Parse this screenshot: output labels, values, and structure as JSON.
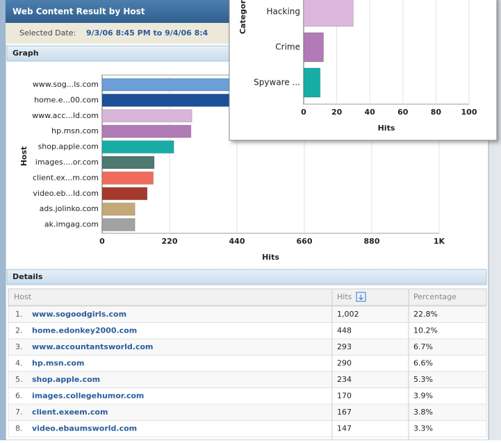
{
  "window": {
    "title": "Web Content Result by Host",
    "selected_date_label": "Selected Date:",
    "selected_date": "9/3/06 8:45 PM to 9/4/06 8:4"
  },
  "graph": {
    "title": "Graph",
    "chart": {
      "type": "bar",
      "orientation": "horizontal",
      "categories": [
        "www.sog...ls.com",
        "home.e...00.com",
        "www.acc...ld.com",
        "hp.msn.com",
        "shop.apple.com",
        "images....or.com",
        "client.ex...m.com",
        "video.eb...ld.com",
        "ads.jolinko.com",
        "ak.imgag.com"
      ],
      "values": [
        1002,
        448,
        293,
        290,
        234,
        170,
        167,
        147,
        107,
        107
      ],
      "colors": [
        "#6b9fd9",
        "#1d4f98",
        "#d9b5da",
        "#b07bb6",
        "#17ada6",
        "#4e7870",
        "#ef6b5c",
        "#a53a2c",
        "#c4a878",
        "#a2a2a2"
      ],
      "xlim": [
        0,
        1100
      ],
      "xticks": [
        0,
        220,
        440,
        660,
        880,
        {
          "value": 1100,
          "label": "1K"
        }
      ],
      "x_label": "Hits",
      "y_label": "Host",
      "grid": true
    }
  },
  "details": {
    "title": "Details",
    "columns": [
      "Host",
      "Hits",
      "Percentage"
    ],
    "rows": [
      [
        "1.",
        "www.sogoodgirls.com",
        "1,002",
        "22.8%"
      ],
      [
        "2.",
        "home.edonkey2000.com",
        "448",
        "10.2%"
      ],
      [
        "3.",
        "www.accountantsworld.com",
        "293",
        "6.7%"
      ],
      [
        "4.",
        "hp.msn.com",
        "290",
        "6.6%"
      ],
      [
        "5.",
        "shop.apple.com",
        "234",
        "5.3%"
      ],
      [
        "6.",
        "images.collegehumor.com",
        "170",
        "3.9%"
      ],
      [
        "7.",
        "client.exeem.com",
        "167",
        "3.8%"
      ],
      [
        "8.",
        "video.ebaumsworld.com",
        "147",
        "3.3%"
      ]
    ]
  },
  "popup": {
    "chart": {
      "type": "bar",
      "orientation": "horizontal",
      "categories": [
        "Hacking",
        "Crime",
        "Spyware ..."
      ],
      "values": [
        30,
        12,
        10
      ],
      "colors": [
        "#dcb6dc",
        "#b07bb6",
        "#17ada6"
      ],
      "xlim": [
        0,
        100
      ],
      "xticks": [
        0,
        20,
        40,
        60,
        80,
        100
      ],
      "x_label": "Hits",
      "y_label": "Categor",
      "grid": true
    }
  }
}
